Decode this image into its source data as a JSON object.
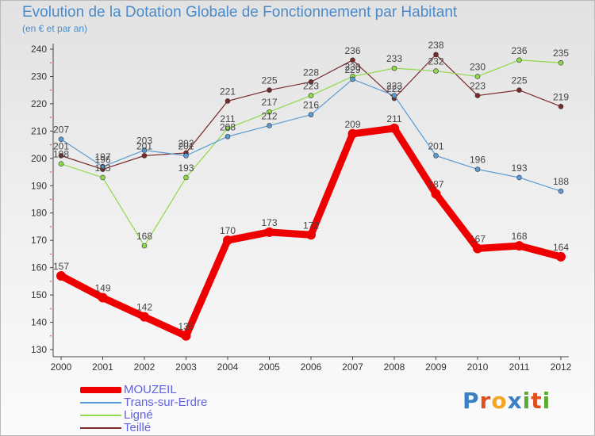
{
  "chart_data": {
    "type": "line",
    "title": "Evolution de la Dotation Globale de Fonctionnement par Habitant",
    "subtitle": "(en € et par an)",
    "xlabel": "",
    "ylabel": "",
    "categories": [
      "2000",
      "2001",
      "2002",
      "2003",
      "2004",
      "2005",
      "2006",
      "2007",
      "2008",
      "2009",
      "2010",
      "2011",
      "2012"
    ],
    "ylim": [
      130,
      240
    ],
    "yticks": [
      130,
      140,
      150,
      160,
      170,
      180,
      190,
      200,
      210,
      220,
      230,
      240
    ],
    "grid": false,
    "series": [
      {
        "name": "MOUZEIL",
        "color": "#ee0000",
        "values": [
          157,
          149,
          142,
          135,
          170,
          173,
          172,
          209,
          211,
          187,
          167,
          168,
          164
        ]
      },
      {
        "name": "Trans-sur-Erdre",
        "color": "#5b9bd5",
        "values": [
          207,
          197,
          203,
          201,
          208,
          212,
          216,
          229,
          223,
          201,
          196,
          193,
          188
        ]
      },
      {
        "name": "Ligné",
        "color": "#8fd94a",
        "values": [
          198,
          193,
          168,
          193,
          211,
          217,
          223,
          230,
          233,
          232,
          230,
          236,
          235
        ]
      },
      {
        "name": "Teillé",
        "color": "#7a2a2a",
        "values": [
          201,
          196,
          201,
          202,
          221,
          225,
          228,
          236,
          222,
          238,
          223,
          225,
          219
        ]
      }
    ]
  },
  "legend": [
    {
      "label": "MOUZEIL"
    },
    {
      "label": "Trans-sur-Erdre"
    },
    {
      "label": "Ligné"
    },
    {
      "label": "Teillé"
    }
  ],
  "logo": {
    "text": "Proxiti",
    "colors": [
      "#3b7fc4",
      "#e0501f",
      "#f2a623",
      "#3b7fc4",
      "#5aab32",
      "#e0501f",
      "#5aab32"
    ]
  }
}
